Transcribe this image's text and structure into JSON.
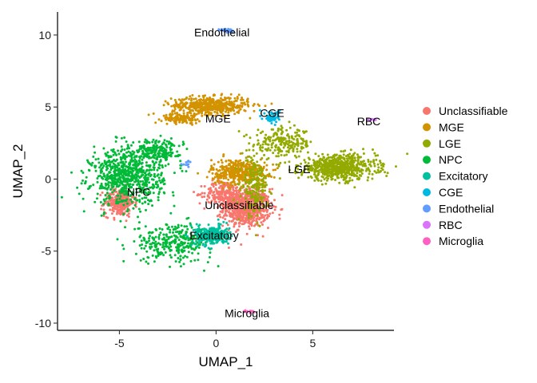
{
  "chart_data": {
    "type": "scatter",
    "xlabel": "UMAP_1",
    "ylabel": "UMAP_2",
    "xlim": [
      -8.2,
      9.2
    ],
    "ylim": [
      -10.5,
      11.6
    ],
    "x_ticks": [
      -5,
      0,
      5
    ],
    "x_tick_labels": [
      "-5",
      "0",
      "5"
    ],
    "y_ticks": [
      -10,
      -5,
      0,
      5,
      10
    ],
    "y_tick_labels": [
      "-10",
      "-5",
      "0",
      "5",
      "10"
    ],
    "grid": false,
    "legend_position": "right",
    "series": [
      {
        "name": "Unclassifiable",
        "color": "#F8766D",
        "clusters": [
          [
            1.6,
            -2.0,
            1.1,
            1.2,
            700
          ],
          [
            -5.0,
            -1.6,
            0.7,
            0.9,
            260
          ],
          [
            0.4,
            -1.0,
            0.9,
            0.8,
            220
          ]
        ],
        "label_pos": [
          1.2,
          -1.8
        ]
      },
      {
        "name": "MGE",
        "color": "#D39200",
        "clusters": [
          [
            -0.3,
            5.1,
            1.8,
            0.55,
            500
          ],
          [
            1.2,
            0.5,
            1.3,
            0.8,
            420
          ],
          [
            -1.8,
            4.2,
            0.9,
            0.3,
            120
          ]
        ],
        "label_pos": [
          0.1,
          4.2
        ]
      },
      {
        "name": "LGE",
        "color": "#93AA00",
        "clusters": [
          [
            6.3,
            0.8,
            1.8,
            0.8,
            650
          ],
          [
            3.5,
            2.5,
            1.4,
            0.9,
            220
          ],
          [
            2.0,
            -0.5,
            0.6,
            1.8,
            200
          ]
        ],
        "label_pos": [
          4.3,
          0.7
        ]
      },
      {
        "name": "NPC",
        "color": "#00BA38",
        "clusters": [
          [
            -4.6,
            0.2,
            1.7,
            1.8,
            750
          ],
          [
            -2.2,
            -4.4,
            1.8,
            1.2,
            300
          ],
          [
            -3.0,
            2.0,
            1.1,
            0.7,
            200
          ]
        ],
        "label_pos": [
          -4.0,
          -0.9
        ]
      },
      {
        "name": "Excitatory",
        "color": "#00C19F",
        "clusters": [
          [
            -0.2,
            -3.9,
            0.8,
            0.6,
            320
          ]
        ],
        "label_pos": [
          -0.1,
          -3.9
        ]
      },
      {
        "name": "CGE",
        "color": "#00B9E3",
        "clusters": [
          [
            2.9,
            4.3,
            0.35,
            0.4,
            60
          ]
        ],
        "label_pos": [
          2.9,
          4.6
        ]
      },
      {
        "name": "Endothelial",
        "color": "#619CFF",
        "clusters": [
          [
            0.6,
            10.3,
            0.35,
            0.15,
            40
          ],
          [
            -1.5,
            1.1,
            0.25,
            0.2,
            12
          ]
        ],
        "label_pos": [
          0.3,
          10.2
        ]
      },
      {
        "name": "RBC",
        "color": "#DB72FB",
        "clusters": [
          [
            8.1,
            4.1,
            0.25,
            0.1,
            12
          ]
        ],
        "label_pos": [
          7.9,
          4.0
        ]
      },
      {
        "name": "Microglia",
        "color": "#FF61C3",
        "clusters": [
          [
            1.7,
            -9.2,
            0.25,
            0.1,
            14
          ]
        ],
        "label_pos": [
          1.6,
          -9.3
        ]
      }
    ]
  }
}
